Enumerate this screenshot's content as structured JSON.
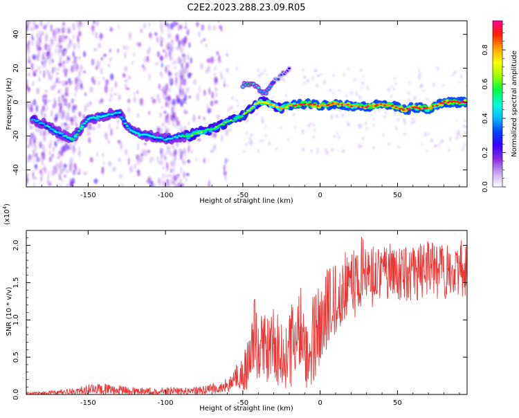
{
  "title": "C2E2.2023.288.23.09.R05",
  "chart_data": [
    {
      "type": "heatmap",
      "xlabel": "Height of straight line (km)",
      "ylabel": "Frequency (Hz)",
      "xlim": [
        -190,
        95
      ],
      "ylim": [
        -50,
        48
      ],
      "x_ticks": [
        -150,
        -100,
        -50,
        0,
        50
      ],
      "x_tick_labels": [
        "-150",
        "-100",
        "-50",
        "0",
        "50"
      ],
      "y_ticks": [
        -40,
        -20,
        0,
        20,
        40
      ],
      "y_tick_labels": [
        "-40",
        "-20",
        "0",
        "20",
        "40"
      ],
      "grid": false,
      "colorbar": {
        "label": "Normalized spectral amplitude",
        "range": [
          0,
          0.97
        ],
        "ticks": [
          0.0,
          0.2,
          0.4,
          0.6,
          0.8
        ],
        "tick_labels": [
          "0.0",
          "0.2",
          "0.4",
          "0.6",
          "0.8"
        ],
        "colors": [
          "#ffffff",
          "#c9a8f0",
          "#8a2be2",
          "#3a00ff",
          "#0044ff",
          "#00bfff",
          "#00ffd0",
          "#00ff40",
          "#9cff00",
          "#ffff00",
          "#ffa000",
          "#ff2000",
          "#ff0090"
        ]
      },
      "ridge": {
        "description_points_x": [
          -185,
          -175,
          -165,
          -160,
          -150,
          -140,
          -130,
          -125,
          -120,
          -110,
          -100,
          -90,
          -85,
          -80,
          -70,
          -60,
          -50,
          -45,
          -40,
          -35,
          -30,
          -25,
          -20,
          -10,
          0,
          10,
          20,
          30,
          40,
          50,
          55,
          60,
          70,
          80,
          90
        ],
        "description_points_y": [
          -10,
          -15,
          -20,
          -22,
          -10,
          -8,
          -6,
          -14,
          -18,
          -20,
          -22,
          -20,
          -20,
          -18,
          -16,
          -12,
          -8,
          -4,
          0,
          0,
          -2,
          -4,
          -2,
          -1,
          -2,
          -1,
          -2,
          -3,
          -1,
          -3,
          -5,
          -3,
          -4,
          0,
          0
        ],
        "values": [
          0.4,
          0.45,
          0.5,
          0.55,
          0.5,
          0.5,
          0.45,
          0.45,
          0.5,
          0.5,
          0.45,
          0.5,
          0.6,
          0.65,
          0.6,
          0.6,
          0.6,
          0.65,
          0.7,
          0.8,
          0.75,
          0.8,
          0.85,
          0.9,
          0.85,
          0.9,
          0.85,
          0.9,
          0.9,
          0.9,
          0.9,
          0.9,
          0.9,
          0.9,
          0.95
        ]
      },
      "secondary_branch": {
        "x": [
          -50,
          -45,
          -40,
          -35,
          -30,
          -25,
          -20
        ],
        "y": [
          10,
          11,
          8,
          5,
          12,
          16,
          20
        ],
        "values": [
          0.5,
          0.55,
          0.45,
          0.4,
          0.35,
          0.3,
          0.25
        ]
      }
    },
    {
      "type": "line",
      "xlabel": "Height of straight line (km)",
      "ylabel": "SNR (10 * v/v)",
      "multiplier_label": "(x10",
      "multiplier_exp": "4",
      "multiplier_close": ")",
      "xlim": [
        -190,
        95
      ],
      "ylim": [
        0,
        2.2
      ],
      "x_ticks": [
        -150,
        -100,
        -50,
        0,
        50
      ],
      "x_tick_labels": [
        "-150",
        "-100",
        "-50",
        "0",
        "50"
      ],
      "y_ticks": [
        0.0,
        0.5,
        1.0,
        1.5,
        2.0
      ],
      "y_tick_labels": [
        "0.0",
        "0.5",
        "1.0",
        "1.5",
        "2.0"
      ],
      "grid": false,
      "series": [
        {
          "color": "#ee3333",
          "x": [
            -190,
            -180,
            -170,
            -160,
            -150,
            -140,
            -130,
            -120,
            -110,
            -100,
            -90,
            -80,
            -70,
            -60,
            -55,
            -50,
            -47,
            -45,
            -43,
            -40,
            -35,
            -30,
            -25,
            -20,
            -15,
            -12,
            -10,
            -8,
            -5,
            0,
            5,
            10,
            15,
            20,
            25,
            30,
            40,
            50,
            60,
            70,
            80,
            90,
            95
          ],
          "values": [
            0.01,
            0.02,
            0.03,
            0.04,
            0.06,
            0.07,
            0.06,
            0.05,
            0.04,
            0.05,
            0.05,
            0.05,
            0.06,
            0.12,
            0.2,
            0.3,
            0.35,
            0.6,
            1.2,
            0.5,
            0.6,
            0.7,
            0.55,
            0.6,
            0.75,
            0.85,
            0.6,
            0.3,
            0.65,
            0.85,
            1.0,
            1.15,
            1.3,
            1.45,
            1.55,
            1.6,
            1.62,
            1.62,
            1.65,
            1.68,
            1.65,
            1.68,
            1.65
          ],
          "envelope_high": [
            0.03,
            0.04,
            0.06,
            0.09,
            0.14,
            0.15,
            0.13,
            0.1,
            0.09,
            0.1,
            0.1,
            0.1,
            0.15,
            0.25,
            0.38,
            0.55,
            0.75,
            1.2,
            1.45,
            1.0,
            1.15,
            1.25,
            1.05,
            1.2,
            1.35,
            1.5,
            1.35,
            0.9,
            1.3,
            1.5,
            1.7,
            1.8,
            1.95,
            2.05,
            2.15,
            2.05,
            2.0,
            2.05,
            2.0,
            2.05,
            2.0,
            2.1,
            2.05
          ],
          "envelope_low": [
            0.0,
            0.0,
            0.0,
            0.0,
            0.0,
            0.0,
            0.0,
            0.0,
            0.0,
            0.0,
            0.0,
            0.0,
            0.0,
            0.02,
            0.05,
            0.05,
            0.05,
            0.1,
            0.2,
            0.05,
            0.1,
            0.1,
            0.05,
            0.05,
            0.1,
            0.2,
            0.1,
            0.05,
            0.15,
            0.35,
            0.6,
            0.8,
            0.95,
            1.0,
            1.05,
            1.1,
            1.2,
            1.2,
            1.25,
            1.3,
            1.25,
            1.3,
            1.2
          ]
        }
      ]
    }
  ]
}
